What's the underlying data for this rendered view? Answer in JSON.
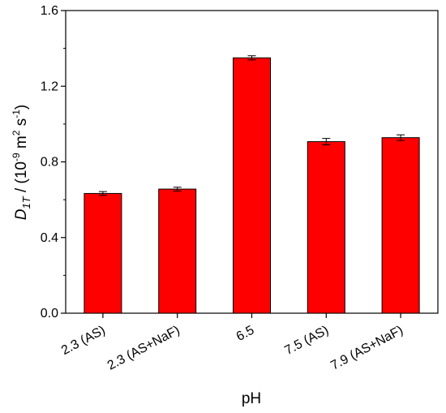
{
  "chart_data": {
    "type": "bar",
    "categories": [
      "2.3 (AS)",
      "2.3 (AS+NaF)",
      "6.5",
      "7.5 (AS)",
      "7.9 (AS+NaF)"
    ],
    "values": [
      0.633,
      0.656,
      1.35,
      0.907,
      0.928
    ],
    "errors": [
      0.01,
      0.01,
      0.011,
      0.017,
      0.015
    ],
    "xlabel": "pH",
    "ylabel": {
      "symbol": "D",
      "subscript": "1T",
      "prefix": " / (10",
      "exponent1": "-9",
      "mid": " m",
      "exponent2": "2",
      "mid2": " s",
      "exponent3": "-1",
      "suffix": ")"
    },
    "ylim": [
      0.0,
      1.6
    ],
    "yticks": [
      "0.0",
      "0.4",
      "0.8",
      "1.2",
      "1.6"
    ],
    "bar_color": "#ff0000",
    "bar_edge_color": "#000000",
    "grid": false
  }
}
